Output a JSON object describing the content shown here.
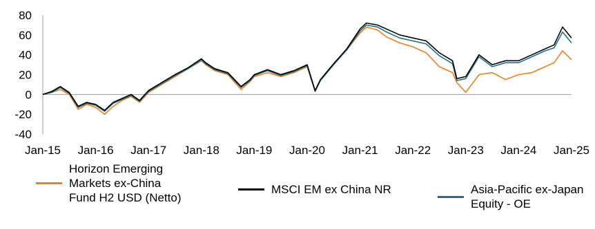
{
  "chart_data": {
    "type": "line",
    "title": "",
    "xlabel": "",
    "ylabel": "",
    "ylim": [
      -40,
      80
    ],
    "yticks": [
      -40,
      -20,
      0,
      20,
      40,
      60,
      80
    ],
    "xticks": [
      "Jan-15",
      "Jan-16",
      "Jan-17",
      "Jan-18",
      "Jan-19",
      "Jan-20",
      "Jan-21",
      "Jan-22",
      "Jan-23",
      "Jan-24",
      "Jan-25"
    ],
    "grid": false,
    "legend_position": "bottom",
    "x": [
      2015.0,
      2015.17,
      2015.33,
      2015.5,
      2015.67,
      2015.83,
      2016.0,
      2016.17,
      2016.33,
      2016.5,
      2016.67,
      2016.83,
      2017.0,
      2017.25,
      2017.5,
      2017.75,
      2018.0,
      2018.08,
      2018.25,
      2018.5,
      2018.75,
      2018.92,
      2019.0,
      2019.25,
      2019.5,
      2019.75,
      2020.0,
      2020.15,
      2020.25,
      2020.5,
      2020.75,
      2021.0,
      2021.12,
      2021.33,
      2021.5,
      2021.75,
      2022.0,
      2022.25,
      2022.5,
      2022.75,
      2022.83,
      2023.0,
      2023.25,
      2023.5,
      2023.75,
      2024.0,
      2024.25,
      2024.5,
      2024.67,
      2024.83,
      2025.0
    ],
    "series": [
      {
        "name": "Horizon Emerging Markets ex-China Fund H2 USD (Netto)",
        "color": "#f47c20",
        "values": [
          0,
          2,
          5,
          0,
          -15,
          -10,
          -13,
          -20,
          -12,
          -6,
          -2,
          -8,
          2,
          10,
          18,
          26,
          34,
          30,
          24,
          20,
          5,
          13,
          18,
          22,
          18,
          22,
          28,
          3,
          14,
          30,
          45,
          62,
          68,
          65,
          58,
          52,
          48,
          42,
          28,
          22,
          12,
          2,
          20,
          22,
          15,
          20,
          22,
          28,
          32,
          44,
          35
        ]
      },
      {
        "name": "MSCI EM ex China NR",
        "color": "#000000",
        "values": [
          0,
          3,
          8,
          2,
          -12,
          -8,
          -10,
          -16,
          -8,
          -4,
          0,
          -6,
          4,
          12,
          20,
          27,
          36,
          32,
          26,
          22,
          8,
          15,
          20,
          25,
          20,
          24,
          30,
          4,
          15,
          31,
          46,
          66,
          72,
          70,
          66,
          60,
          57,
          54,
          42,
          34,
          16,
          18,
          40,
          30,
          34,
          34,
          40,
          46,
          50,
          68,
          57
        ]
      },
      {
        "name": "Asia-Pacific ex-Japan Equity - OE",
        "color": "#1e6f8c",
        "values": [
          0,
          2,
          7,
          1,
          -13,
          -9,
          -11,
          -17,
          -9,
          -5,
          -1,
          -7,
          3,
          11,
          19,
          26,
          35,
          31,
          25,
          21,
          7,
          14,
          19,
          24,
          19,
          23,
          29,
          3,
          14,
          30,
          45,
          64,
          70,
          68,
          63,
          57,
          54,
          51,
          39,
          31,
          14,
          16,
          38,
          28,
          32,
          32,
          38,
          44,
          47,
          63,
          52
        ]
      }
    ]
  }
}
